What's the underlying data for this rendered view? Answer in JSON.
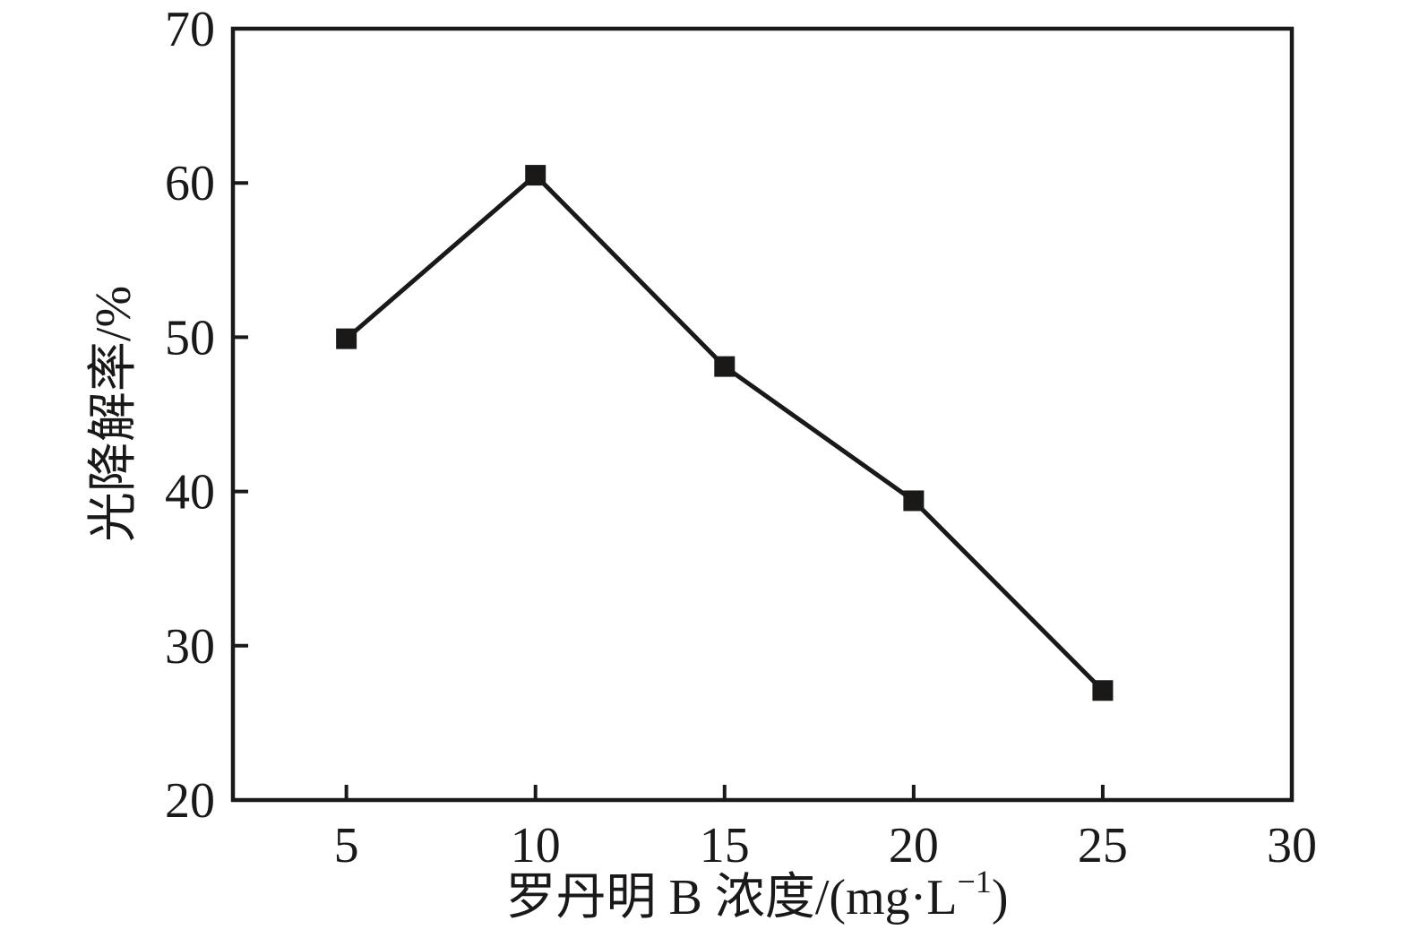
{
  "figure": {
    "background": "#ffffff",
    "ink_color": "#1b1918"
  },
  "chart_data": {
    "type": "line",
    "title": "",
    "xlabel": "罗丹明 B 浓度/(mg·L⁻¹)",
    "xlabel_parts": {
      "pre": "罗丹明 B 浓度/(mg·L",
      "sup": "−1",
      "post": ")"
    },
    "ylabel": "光降解率/%",
    "x": [
      5,
      10,
      15,
      20,
      25
    ],
    "y": [
      49.9,
      60.5,
      48.1,
      39.4,
      27.1
    ],
    "xlim": [
      2,
      30
    ],
    "ylim": [
      20,
      70
    ],
    "x_ticks": [
      "5",
      "10",
      "15",
      "20",
      "25",
      "30"
    ],
    "x_tick_values": [
      5,
      10,
      15,
      20,
      25,
      30
    ],
    "y_ticks": [
      "20",
      "30",
      "40",
      "50",
      "60",
      "70"
    ],
    "y_tick_values": [
      20,
      30,
      40,
      50,
      60,
      70
    ],
    "grid": false,
    "legend": "none",
    "marker": "filled-square",
    "line_color": "#1b1918",
    "marker_color": "#1b1918"
  }
}
